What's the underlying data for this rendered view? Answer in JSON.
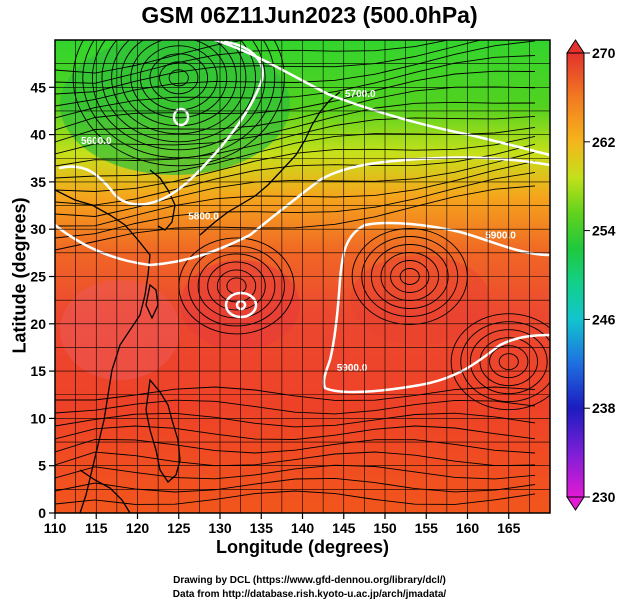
{
  "title": "GSM 06Z11Jun2023 (500.0hPa)",
  "x_axis": {
    "label": "Longitude (degrees)",
    "range": [
      110,
      170
    ],
    "ticks": [
      110,
      115,
      120,
      125,
      130,
      135,
      140,
      145,
      150,
      155,
      160,
      165
    ]
  },
  "y_axis": {
    "label": "Latitude  (degrees)",
    "range": [
      0,
      50
    ],
    "ticks": [
      0,
      5,
      10,
      15,
      20,
      25,
      30,
      35,
      40,
      45
    ]
  },
  "colorbar": {
    "range": [
      230,
      270
    ],
    "ticks": [
      230,
      238,
      246,
      254,
      262,
      270
    ],
    "colors": [
      "#e21ad4",
      "#7b1fd6",
      "#1c1cbf",
      "#1e7be5",
      "#13c4cf",
      "#12d08a",
      "#20c83d",
      "#62d21d",
      "#c4e01c",
      "#f5b51c",
      "#f27a21",
      "#ec3d25",
      "#e3322d"
    ]
  },
  "contours": [
    {
      "label": "5600.0",
      "lon": 115,
      "lat": 39
    },
    {
      "label": "5700.0",
      "lon": 147,
      "lat": 44
    },
    {
      "label": "5800.0",
      "lon": 128,
      "lat": 31
    },
    {
      "label": "5900.0",
      "lon": 146,
      "lat": 15
    },
    {
      "label": "5900.0",
      "lon": 164,
      "lat": 29
    }
  ],
  "centers": [
    {
      "name": "low",
      "lon": 125,
      "lat": 46
    },
    {
      "name": "high",
      "lon": 132,
      "lat": 24
    },
    {
      "name": "high",
      "lon": 153,
      "lat": 25
    },
    {
      "name": "high",
      "lon": 165,
      "lat": 16
    }
  ],
  "credits": {
    "line1": "Drawing by DCL (https://www.gfd-dennou.org/library/dcl/)",
    "line2": "Data from http://database.rish.kyoto-u.ac.jp/arch/jmadata/"
  }
}
